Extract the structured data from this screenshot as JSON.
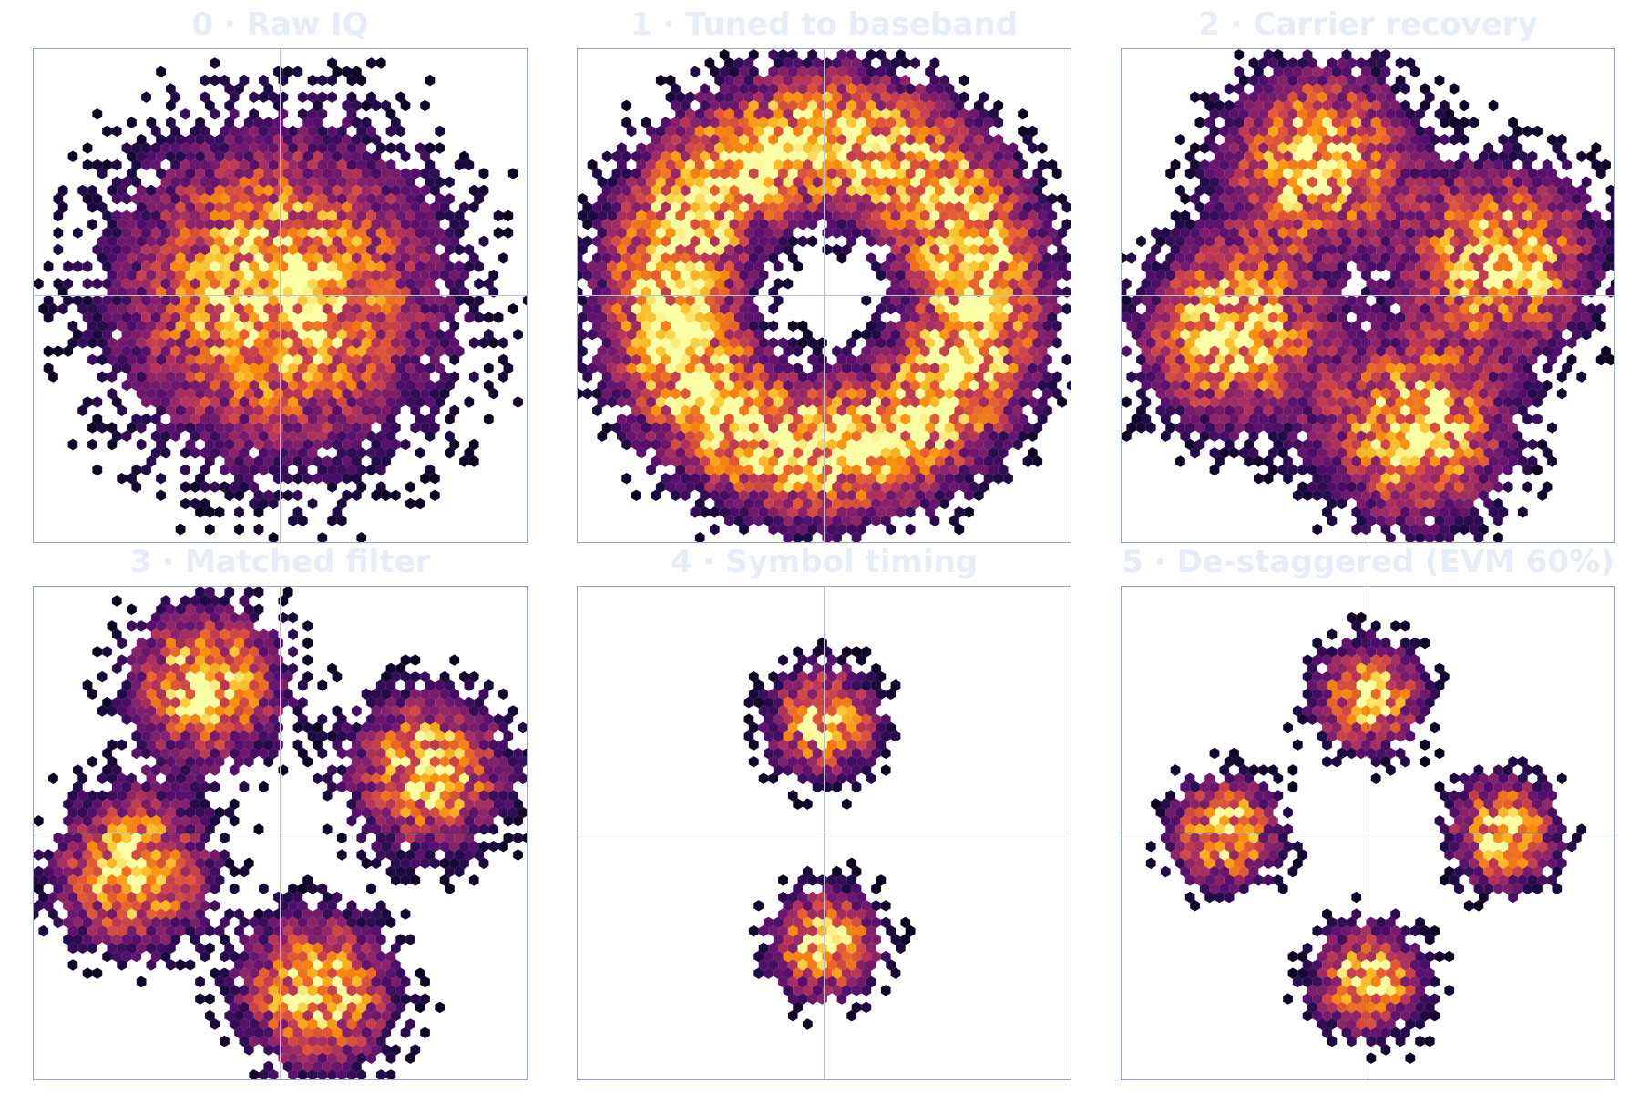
{
  "chart_data": [
    {
      "type": "heatmap",
      "subtype": "hexbin-constellation",
      "title": "0 · Raw IQ",
      "colormap": "inferno",
      "structure": "single diffuse blob",
      "clusters": [
        {
          "i": 0.0,
          "q": 0.0,
          "spread": 0.42
        }
      ],
      "grid": false,
      "zero_lines": true
    },
    {
      "type": "heatmap",
      "subtype": "hexbin-constellation",
      "title": "1 · Tuned to baseband",
      "colormap": "inferno",
      "structure": "ring",
      "ring": {
        "radius": 0.62,
        "spread": 0.2
      },
      "grid": false,
      "zero_lines": true
    },
    {
      "type": "heatmap",
      "subtype": "hexbin-constellation",
      "title": "2 · Carrier recovery",
      "colormap": "inferno",
      "structure": "four smeared clusters",
      "clusters": [
        {
          "i": -0.2,
          "q": 0.55,
          "spread": 0.24
        },
        {
          "i": 0.55,
          "q": 0.15,
          "spread": 0.24
        },
        {
          "i": 0.2,
          "q": -0.55,
          "spread": 0.24
        },
        {
          "i": -0.55,
          "q": -0.15,
          "spread": 0.24
        }
      ],
      "grid": false,
      "zero_lines": true
    },
    {
      "type": "heatmap",
      "subtype": "hexbin-constellation",
      "title": "3 · Matched filter",
      "colormap": "inferno",
      "structure": "rotated ring with lobes",
      "clusters": [
        {
          "i": -0.3,
          "q": 0.6,
          "spread": 0.2
        },
        {
          "i": 0.6,
          "q": 0.25,
          "spread": 0.2
        },
        {
          "i": 0.15,
          "q": -0.65,
          "spread": 0.2
        },
        {
          "i": -0.6,
          "q": -0.15,
          "spread": 0.2
        }
      ],
      "grid": false,
      "zero_lines": true
    },
    {
      "type": "heatmap",
      "subtype": "hexbin-constellation",
      "title": "4 · Symbol timing",
      "colormap": "inferno",
      "structure": "upper and lower bands",
      "clusters": [
        {
          "i": 0.0,
          "q": 0.45,
          "spread": 0.14
        },
        {
          "i": 0.0,
          "q": -0.45,
          "spread": 0.14
        }
      ],
      "grid": false,
      "zero_lines": true
    },
    {
      "type": "heatmap",
      "subtype": "hexbin-constellation",
      "title": "5 · De-staggered  (EVM 60%)",
      "colormap": "inferno",
      "structure": "four tight clusters",
      "clusters": [
        {
          "i": 0.0,
          "q": 0.55,
          "spread": 0.14
        },
        {
          "i": 0.55,
          "q": 0.0,
          "spread": 0.14
        },
        {
          "i": 0.0,
          "q": -0.6,
          "spread": 0.14
        },
        {
          "i": -0.58,
          "q": 0.0,
          "spread": 0.14
        }
      ],
      "evm_percent": 60,
      "grid": false,
      "zero_lines": true
    }
  ]
}
